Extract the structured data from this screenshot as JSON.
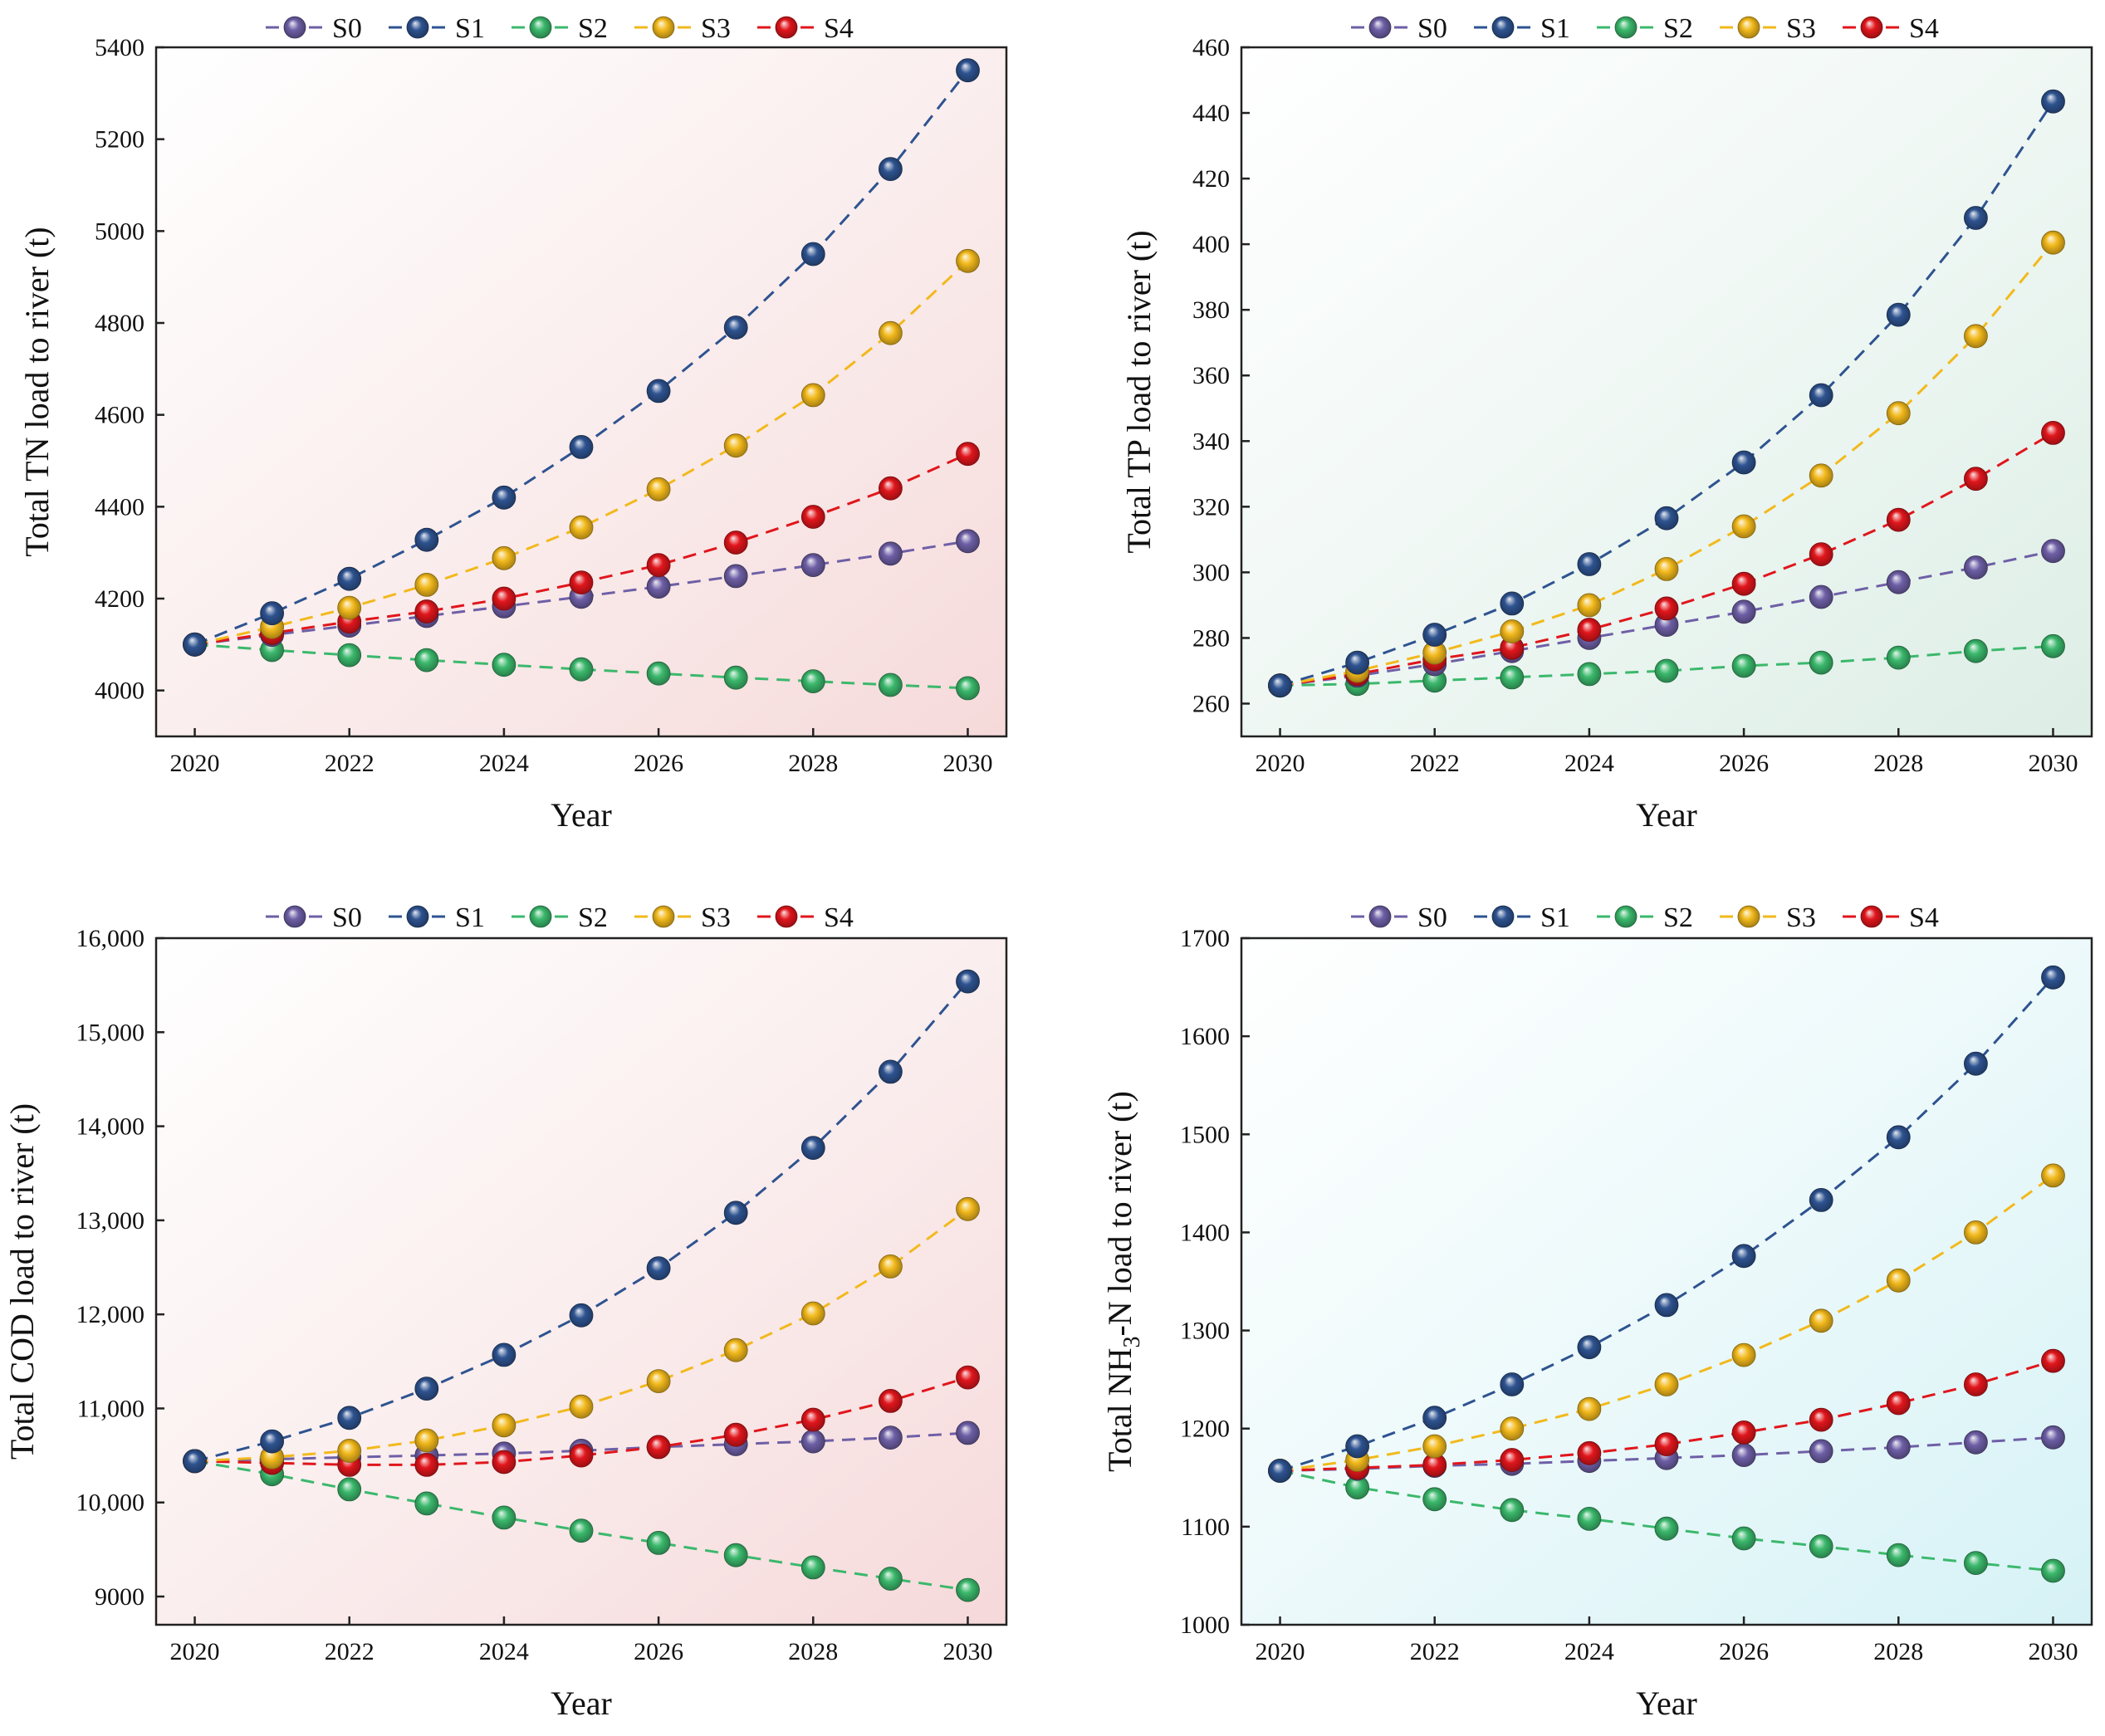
{
  "colors": {
    "S0": "#6e5fa6",
    "S1": "#2e5390",
    "S2": "#3bb86c",
    "S3": "#f2b91c",
    "S4": "#e0161c",
    "bg_tn": "#f6dada",
    "bg_tp": "#ddeee6",
    "bg_cod": "#f6d9da",
    "bg_nh3": "#d6f2f6"
  },
  "legend": [
    "S0",
    "S1",
    "S2",
    "S3",
    "S4"
  ],
  "chart_data": [
    {
      "id": "tn",
      "type": "line",
      "xlabel": "Year",
      "ylabel": "Total TN load to river (t)",
      "x": [
        2020,
        2021,
        2022,
        2023,
        2024,
        2025,
        2026,
        2027,
        2028,
        2029,
        2030
      ],
      "xlim": [
        2019.5,
        2030.5
      ],
      "ylim": [
        3900,
        5400
      ],
      "xticks": [
        2020,
        2022,
        2024,
        2026,
        2028,
        2030
      ],
      "xtick_labels": [
        "2020",
        "2022",
        "2024",
        "2026",
        "2028",
        "2030"
      ],
      "yticks": [
        4000,
        4200,
        4400,
        4600,
        4800,
        5000,
        5200,
        5400
      ],
      "ytick_labels": [
        "4000",
        "4200",
        "4400",
        "4600",
        "4800",
        "5000",
        "5200",
        "5400"
      ],
      "series": [
        {
          "name": "S0",
          "values": [
            4100,
            4121,
            4141,
            4162,
            4183,
            4204,
            4226,
            4249,
            4273,
            4298,
            4325
          ]
        },
        {
          "name": "S1",
          "values": [
            4100,
            4168,
            4243,
            4328,
            4420,
            4530,
            4652,
            4790,
            4950,
            5135,
            5350
          ]
        },
        {
          "name": "S2",
          "values": [
            4100,
            4088,
            4077,
            4066,
            4056,
            4046,
            4037,
            4028,
            4020,
            4012,
            4005
          ]
        },
        {
          "name": "S3",
          "values": [
            4100,
            4138,
            4180,
            4230,
            4288,
            4355,
            4438,
            4533,
            4643,
            4778,
            4935
          ]
        },
        {
          "name": "S4",
          "values": [
            4100,
            4125,
            4150,
            4172,
            4200,
            4235,
            4273,
            4322,
            4378,
            4440,
            4515
          ]
        }
      ]
    },
    {
      "id": "tp",
      "type": "line",
      "xlabel": "Year",
      "ylabel": "Total TP load to river (t)",
      "x": [
        2020,
        2021,
        2022,
        2023,
        2024,
        2025,
        2026,
        2027,
        2028,
        2029,
        2030
      ],
      "xlim": [
        2019.5,
        2030.5
      ],
      "ylim": [
        250,
        460
      ],
      "xticks": [
        2020,
        2022,
        2024,
        2026,
        2028,
        2030
      ],
      "xtick_labels": [
        "2020",
        "2022",
        "2024",
        "2026",
        "2028",
        "2030"
      ],
      "yticks": [
        260,
        280,
        300,
        320,
        340,
        360,
        380,
        400,
        420,
        440,
        460
      ],
      "ytick_labels": [
        "260",
        "280",
        "300",
        "320",
        "340",
        "360",
        "380",
        "400",
        "420",
        "440",
        "460"
      ],
      "series": [
        {
          "name": "S0",
          "values": [
            265.5,
            268.5,
            272,
            276,
            280,
            284,
            288,
            292.5,
            297,
            301.5,
            306.5
          ]
        },
        {
          "name": "S1",
          "values": [
            265.5,
            272.5,
            281,
            290.5,
            302.5,
            316.5,
            333.5,
            354,
            378.5,
            408,
            443.5
          ]
        },
        {
          "name": "S2",
          "values": [
            265.5,
            266,
            267,
            268,
            269,
            270,
            271.5,
            272.5,
            274,
            276,
            277.5
          ]
        },
        {
          "name": "S3",
          "values": [
            265.5,
            270,
            275.5,
            282,
            290,
            301,
            314,
            329.5,
            348.5,
            372,
            400.5
          ]
        },
        {
          "name": "S4",
          "values": [
            265.5,
            269,
            273.5,
            277,
            282.5,
            289,
            296.5,
            305.5,
            316,
            328.5,
            342.5
          ]
        }
      ]
    },
    {
      "id": "cod",
      "type": "line",
      "xlabel": "Year",
      "ylabel": "Total COD load to river (t)",
      "x": [
        2020,
        2021,
        2022,
        2023,
        2024,
        2025,
        2026,
        2027,
        2028,
        2029,
        2030
      ],
      "xlim": [
        2019.5,
        2030.5
      ],
      "ylim": [
        8700,
        16000
      ],
      "xticks": [
        2020,
        2022,
        2024,
        2026,
        2028,
        2030
      ],
      "xtick_labels": [
        "2020",
        "2022",
        "2024",
        "2026",
        "2028",
        "2030"
      ],
      "yticks": [
        9000,
        10000,
        11000,
        12000,
        13000,
        14000,
        15000,
        16000
      ],
      "ytick_labels": [
        "9000",
        "10,000",
        "11,000",
        "12,000",
        "13,000",
        "14,000",
        "15,000",
        "16,000"
      ],
      "series": [
        {
          "name": "S0",
          "values": [
            10440,
            10460,
            10480,
            10500,
            10520,
            10550,
            10590,
            10620,
            10650,
            10690,
            10740
          ]
        },
        {
          "name": "S1",
          "values": [
            10440,
            10650,
            10900,
            11210,
            11570,
            11990,
            12490,
            13080,
            13770,
            14580,
            15540
          ]
        },
        {
          "name": "S2",
          "values": [
            10440,
            10300,
            10140,
            9990,
            9840,
            9700,
            9570,
            9440,
            9310,
            9190,
            9070
          ]
        },
        {
          "name": "S3",
          "values": [
            10440,
            10480,
            10550,
            10660,
            10820,
            11020,
            11290,
            11620,
            12010,
            12510,
            13120
          ]
        },
        {
          "name": "S4",
          "values": [
            10440,
            10420,
            10400,
            10400,
            10430,
            10500,
            10590,
            10720,
            10880,
            11080,
            11330
          ]
        }
      ]
    },
    {
      "id": "nh3",
      "type": "line",
      "xlabel": "Year",
      "ylabel": "Total NH3-N load to river (t)",
      "ylabel_parts": {
        "pre": "Total NH",
        "sub": "3",
        "post": "-N load to river (t)"
      },
      "x": [
        2020,
        2021,
        2022,
        2023,
        2024,
        2025,
        2026,
        2027,
        2028,
        2029,
        2030
      ],
      "xlim": [
        2019.5,
        2030.5
      ],
      "ylim": [
        1000,
        1700
      ],
      "xticks": [
        2020,
        2022,
        2024,
        2026,
        2028,
        2030
      ],
      "xtick_labels": [
        "2020",
        "2022",
        "2024",
        "2026",
        "2028",
        "2030"
      ],
      "yticks": [
        1000,
        1100,
        1200,
        1300,
        1400,
        1500,
        1600,
        1700
      ],
      "ytick_labels": [
        "1000",
        "1100",
        "1200",
        "1300",
        "1400",
        "1500",
        "1600",
        "1700"
      ],
      "series": [
        {
          "name": "S0",
          "values": [
            1157,
            1159,
            1162,
            1164,
            1167,
            1170,
            1173,
            1177,
            1181,
            1186,
            1191
          ]
        },
        {
          "name": "S1",
          "values": [
            1157,
            1182,
            1211,
            1245,
            1283,
            1326,
            1376,
            1433,
            1497,
            1572,
            1660
          ]
        },
        {
          "name": "S2",
          "values": [
            1157,
            1140,
            1128,
            1117,
            1108,
            1098,
            1088,
            1080,
            1071,
            1063,
            1055
          ]
        },
        {
          "name": "S3",
          "values": [
            1157,
            1168,
            1182,
            1200,
            1220,
            1245,
            1275,
            1310,
            1351,
            1400,
            1458
          ]
        },
        {
          "name": "S4",
          "values": [
            1157,
            1160,
            1163,
            1168,
            1175,
            1184,
            1196,
            1209,
            1226,
            1245,
            1269
          ]
        }
      ]
    }
  ]
}
